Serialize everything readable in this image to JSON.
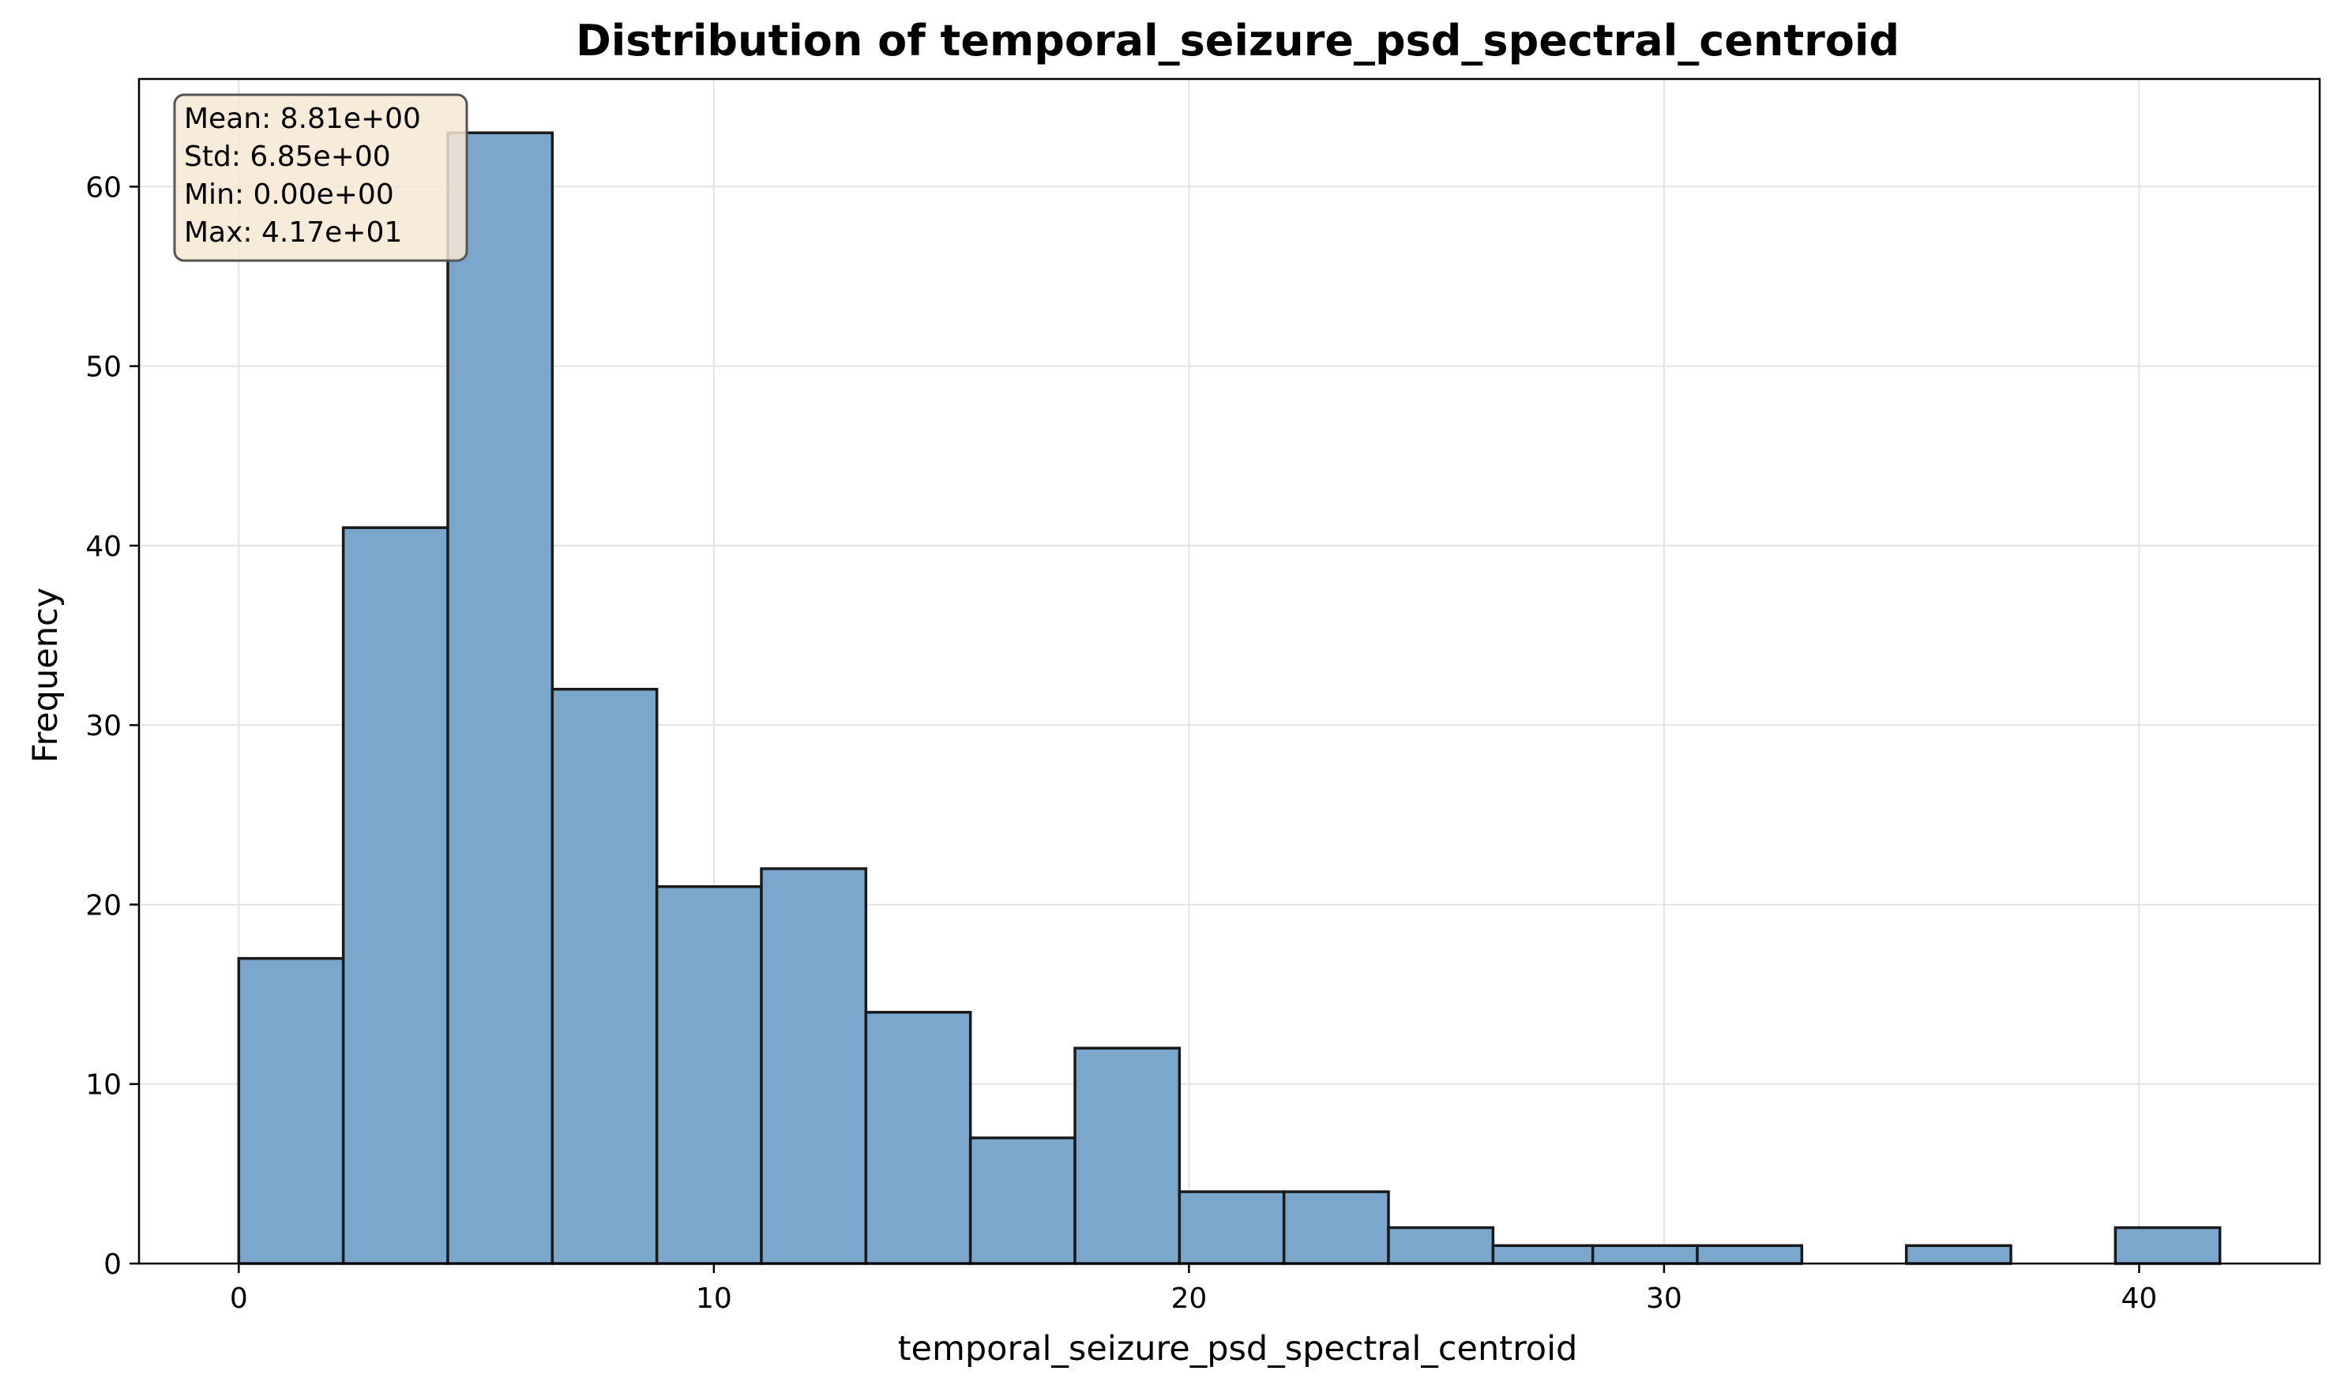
{
  "chart_data": {
    "type": "bar",
    "title": "Distribution of temporal_seizure_psd_spectral_centroid",
    "xlabel": "temporal_seizure_psd_spectral_centroid",
    "ylabel": "Frequency",
    "bin_edges": [
      0.0,
      2.2,
      4.4,
      6.6,
      8.8,
      11.0,
      13.2,
      15.4,
      17.6,
      19.8,
      22.0,
      24.2,
      26.4,
      28.5,
      30.7,
      32.9,
      35.1,
      37.3,
      39.5,
      41.7
    ],
    "values": [
      17,
      41,
      63,
      32,
      21,
      22,
      14,
      7,
      12,
      4,
      4,
      2,
      1,
      1,
      1,
      0,
      1,
      0,
      2
    ],
    "xlim": [
      -2.1,
      43.8
    ],
    "ylim": [
      0,
      66
    ],
    "xticks": [
      0,
      10,
      20,
      30,
      40
    ],
    "yticks": [
      0,
      10,
      20,
      30,
      40,
      50,
      60
    ],
    "grid": true,
    "legend": "none",
    "stats_lines": [
      "Mean: 8.81e+00",
      "Std: 6.85e+00",
      "Min: 0.00e+00",
      "Max: 4.17e+01"
    ],
    "colors": {
      "bar_fill": "#7ba7cc",
      "bar_edge": "#1a1a1a",
      "stats_box_fill": "#f6e9d2",
      "stats_box_edge": "#555555",
      "grid": "#e3e3e3",
      "axis": "#000000"
    }
  }
}
